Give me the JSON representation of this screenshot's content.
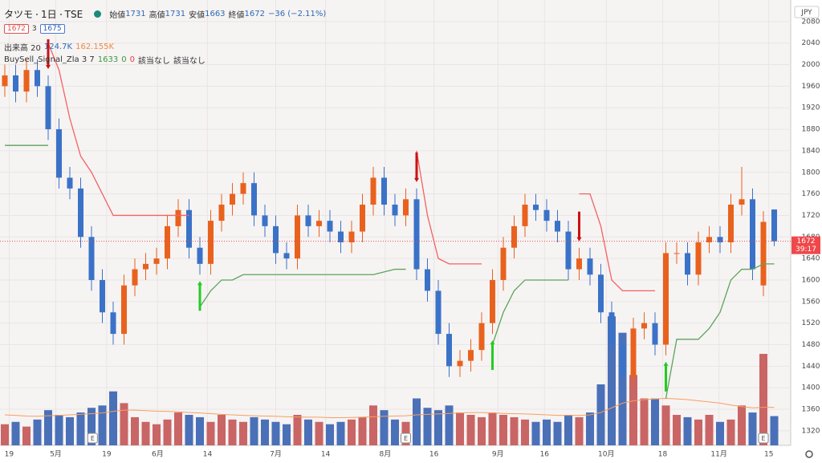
{
  "chart_data": {
    "type": "candlestick",
    "header": {
      "symbol": "タツモ",
      "interval": "1日",
      "exchange": "TSE",
      "open_label": "始値",
      "open": 1731,
      "high_label": "高値",
      "high": 1731,
      "low_label": "安値",
      "low": 1663,
      "close_label": "終値",
      "close": 1672,
      "change": "−36 (−2.11%)",
      "bid": 1672,
      "spread": 3,
      "ask": 1675
    },
    "volume_legend": {
      "name": "出来高 20",
      "value": "124.7K",
      "ma": "162.155K"
    },
    "indicator_legend": {
      "name": "BuySell_Signal_Zla 3 7",
      "value": 1633,
      "buy": 0,
      "sell": 0,
      "buy_text": "該当なし",
      "sell_text": "該当なし"
    },
    "currency": "JPY",
    "open": [
      1960,
      1980,
      1950,
      1990,
      1960,
      1880,
      1790,
      1770,
      1680,
      1600,
      1540,
      1500,
      1590,
      1620,
      1630,
      1640,
      1700,
      1730,
      1660,
      1630,
      1710,
      1740,
      1760,
      1780,
      1720,
      1700,
      1650,
      1640,
      1720,
      1700,
      1710,
      1690,
      1670,
      1690,
      1740,
      1790,
      1740,
      1720,
      1750,
      1620,
      1580,
      1500,
      1440,
      1450,
      1470,
      1520,
      1600,
      1660,
      1700,
      1740,
      1730,
      1710,
      1690,
      1620,
      1640,
      1610,
      1540,
      1480,
      1420,
      1510,
      1520,
      1480,
      1650,
      1650,
      1610,
      1670,
      1680,
      1670,
      1740,
      1750,
      1590,
      1731
    ],
    "high": [
      2000,
      2000,
      2010,
      2010,
      1980,
      1900,
      1810,
      1790,
      1700,
      1620,
      1560,
      1610,
      1640,
      1650,
      1660,
      1720,
      1750,
      1750,
      1680,
      1730,
      1760,
      1780,
      1800,
      1800,
      1740,
      1720,
      1670,
      1740,
      1740,
      1730,
      1730,
      1710,
      1710,
      1760,
      1810,
      1810,
      1760,
      1770,
      1770,
      1640,
      1600,
      1520,
      1470,
      1490,
      1540,
      1620,
      1680,
      1720,
      1760,
      1760,
      1750,
      1730,
      1710,
      1660,
      1660,
      1630,
      1560,
      1500,
      1530,
      1540,
      1540,
      1670,
      1670,
      1670,
      1690,
      1700,
      1700,
      1760,
      1810,
      1770,
      1728,
      1731
    ],
    "low": [
      1940,
      1930,
      1930,
      1940,
      1860,
      1770,
      1750,
      1660,
      1580,
      1520,
      1480,
      1480,
      1570,
      1600,
      1610,
      1620,
      1680,
      1640,
      1610,
      1610,
      1690,
      1720,
      1740,
      1700,
      1680,
      1630,
      1620,
      1620,
      1680,
      1680,
      1670,
      1650,
      1650,
      1670,
      1720,
      1720,
      1700,
      1700,
      1600,
      1560,
      1480,
      1420,
      1420,
      1430,
      1450,
      1500,
      1580,
      1640,
      1680,
      1710,
      1690,
      1670,
      1600,
      1600,
      1590,
      1520,
      1460,
      1400,
      1400,
      1490,
      1460,
      1460,
      1630,
      1590,
      1590,
      1650,
      1650,
      1650,
      1720,
      1600,
      1570,
      1663
    ],
    "close": [
      1980,
      1950,
      1990,
      1960,
      1880,
      1790,
      1770,
      1680,
      1600,
      1540,
      1500,
      1590,
      1620,
      1630,
      1640,
      1700,
      1730,
      1660,
      1630,
      1710,
      1740,
      1760,
      1780,
      1720,
      1700,
      1650,
      1640,
      1720,
      1700,
      1710,
      1690,
      1670,
      1690,
      1740,
      1790,
      1740,
      1720,
      1750,
      1620,
      1580,
      1500,
      1440,
      1450,
      1470,
      1520,
      1600,
      1660,
      1700,
      1740,
      1730,
      1710,
      1690,
      1620,
      1640,
      1610,
      1540,
      1480,
      1420,
      1510,
      1520,
      1480,
      1650,
      1650,
      1610,
      1670,
      1680,
      1670,
      1740,
      1750,
      1620,
      1708,
      1672
    ],
    "volume": [
      90,
      100,
      80,
      110,
      150,
      130,
      120,
      140,
      160,
      170,
      230,
      180,
      120,
      100,
      90,
      110,
      140,
      130,
      120,
      100,
      130,
      110,
      100,
      120,
      110,
      100,
      90,
      130,
      110,
      100,
      90,
      100,
      110,
      120,
      170,
      150,
      110,
      100,
      200,
      160,
      150,
      170,
      140,
      130,
      120,
      140,
      130,
      120,
      110,
      100,
      110,
      100,
      130,
      120,
      140,
      260,
      550,
      480,
      300,
      200,
      200,
      170,
      130,
      120,
      110,
      130,
      100,
      110,
      170,
      140,
      390,
      124.7
    ],
    "volume_ma": [
      130,
      128,
      125,
      124,
      126,
      128,
      130,
      132,
      135,
      138,
      145,
      150,
      150,
      148,
      146,
      145,
      143,
      140,
      138,
      135,
      132,
      130,
      128,
      126,
      125,
      124,
      122,
      121,
      120,
      120,
      118,
      118,
      119,
      120,
      122,
      124,
      125,
      126,
      130,
      132,
      134,
      136,
      138,
      140,
      140,
      138,
      136,
      135,
      134,
      132,
      130,
      128,
      128,
      128,
      130,
      140,
      160,
      180,
      190,
      195,
      198,
      200,
      198,
      195,
      190,
      185,
      180,
      172,
      165,
      160,
      162,
      162.155
    ],
    "vlim": [
      0,
      650
    ],
    "lines": [
      {
        "color": "#f26262",
        "values": [
          null,
          null,
          null,
          null,
          2040,
          1990,
          1900,
          1830,
          1800,
          1760,
          1720,
          1720,
          1720,
          1720,
          1720,
          1720,
          1720,
          1720,
          null,
          null,
          null,
          null,
          null,
          null,
          null,
          null,
          null,
          null,
          null,
          null,
          null,
          null,
          null,
          null,
          null,
          null,
          null,
          null,
          1840,
          1720,
          1640,
          1630,
          1630,
          1630,
          1630,
          null,
          null,
          null,
          null,
          null,
          null,
          null,
          null,
          1760,
          1760,
          1700,
          1600,
          1580,
          1580,
          1580,
          1580,
          null,
          null,
          null,
          null,
          null,
          null,
          null,
          null,
          null,
          null,
          null
        ]
      },
      {
        "color": "#5aa55a",
        "values": [
          1850,
          1850,
          1850,
          1850,
          1850,
          null,
          null,
          null,
          null,
          null,
          null,
          null,
          null,
          null,
          null,
          null,
          null,
          null,
          1550,
          1580,
          1600,
          1600,
          1610,
          1610,
          1610,
          1610,
          1610,
          1610,
          1610,
          1610,
          1610,
          1610,
          1610,
          1610,
          1610,
          1615,
          1620,
          1620,
          null,
          null,
          null,
          null,
          null,
          null,
          null,
          1480,
          1540,
          1580,
          1600,
          1600,
          1600,
          1600,
          1600,
          null,
          null,
          null,
          null,
          null,
          null,
          null,
          null,
          1380,
          1490,
          1490,
          1490,
          1510,
          1540,
          1600,
          1620,
          1620,
          1630,
          1630
        ]
      }
    ],
    "signals": [
      {
        "index": 4,
        "side": "sell"
      },
      {
        "index": 18,
        "side": "buy"
      },
      {
        "index": 38,
        "side": "sell"
      },
      {
        "index": 45,
        "side": "buy"
      },
      {
        "index": 53,
        "side": "sell"
      },
      {
        "index": 61,
        "side": "buy"
      }
    ],
    "events": [
      {
        "index": 8.1,
        "label": "E"
      },
      {
        "index": 37,
        "label": "E"
      },
      {
        "index": 70,
        "label": "E"
      }
    ],
    "up_color": "#e8621e",
    "down_color": "#3a72c8",
    "volume_up_color": "#c96565",
    "volume_down_color": "#4a70b8",
    "ylim": [
      1293,
      2120
    ],
    "yticks": [
      1320,
      1360,
      1400,
      1440,
      1480,
      1520,
      1560,
      1600,
      1640,
      1680,
      1720,
      1760,
      1800,
      1840,
      1880,
      1920,
      1960,
      2000,
      2040,
      2080
    ],
    "xticks": [
      {
        "value": 0.4,
        "label": "19"
      },
      {
        "value": 4.7,
        "label": "5月"
      },
      {
        "value": 9.4,
        "label": "19"
      },
      {
        "value": 14.1,
        "label": "6月"
      },
      {
        "value": 18.7,
        "label": "14"
      },
      {
        "value": 25,
        "label": "7月"
      },
      {
        "value": 29.6,
        "label": "14"
      },
      {
        "value": 35.1,
        "label": "8月"
      },
      {
        "value": 39.6,
        "label": "16"
      },
      {
        "value": 45.5,
        "label": "9月"
      },
      {
        "value": 49.8,
        "label": "16"
      },
      {
        "value": 55.5,
        "label": "10月"
      },
      {
        "value": 60.7,
        "label": "18"
      },
      {
        "value": 65.9,
        "label": "11月"
      },
      {
        "value": 70.5,
        "label": "15"
      }
    ],
    "last_price": 1672,
    "countdown": "39:17",
    "grid": true
  }
}
